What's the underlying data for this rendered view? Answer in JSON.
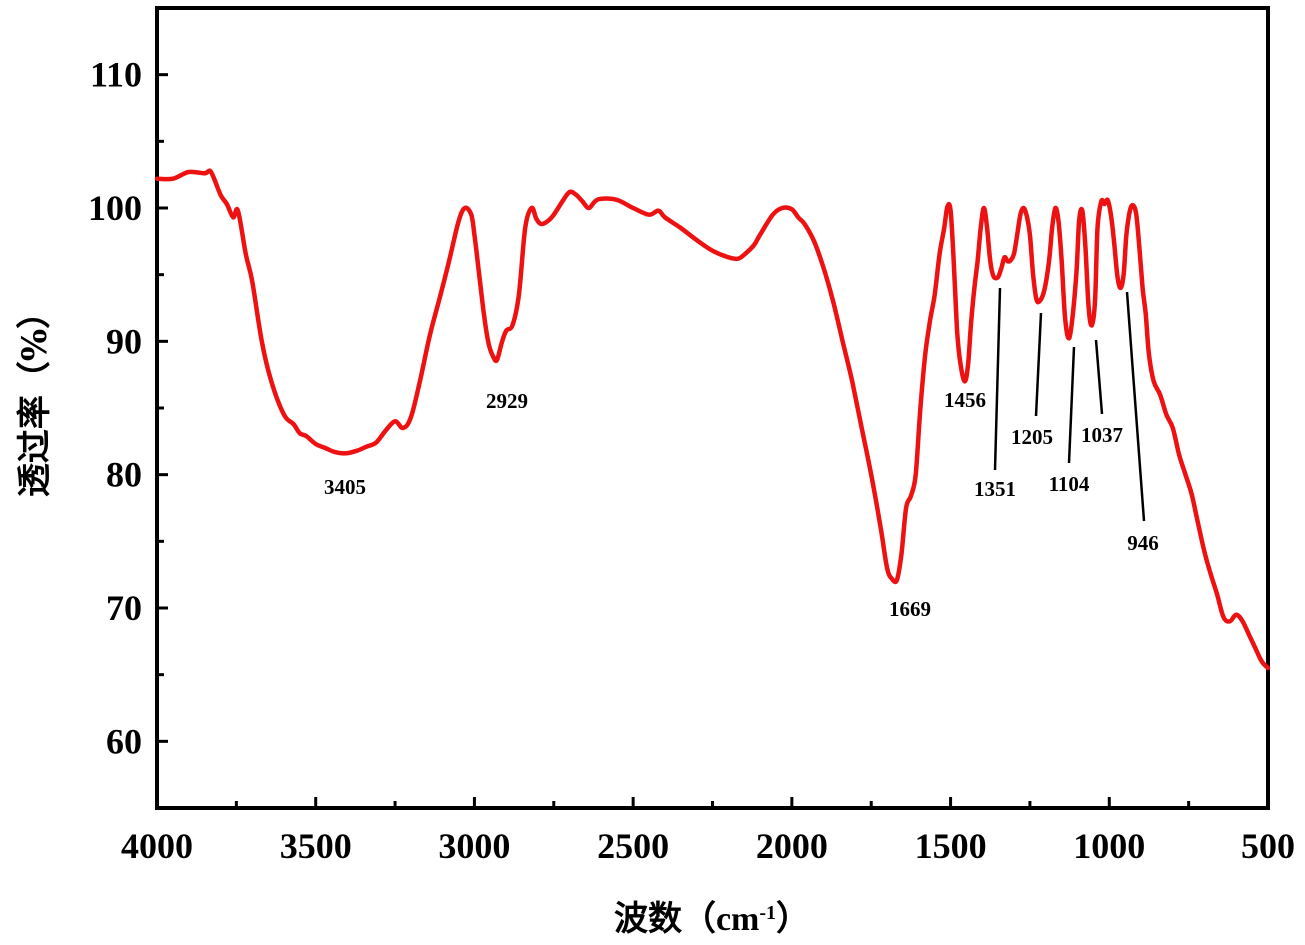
{
  "chart_data": {
    "type": "line",
    "title": "",
    "xlabel": "波数（cm⁻¹）",
    "xlabel_parts": {
      "main": "波数",
      "open": "（",
      "unit": "cm",
      "sup": "-1",
      "close": "）"
    },
    "ylabel": "透过率（%）",
    "xlim": [
      4000,
      500
    ],
    "ylim": [
      55,
      115
    ],
    "x_ticks": [
      4000,
      3500,
      3000,
      2500,
      2000,
      1500,
      1000,
      500
    ],
    "x_tick_labels": [
      "4000",
      "3500",
      "3000",
      "2500",
      "2000",
      "1500",
      "1000",
      "500"
    ],
    "y_ticks": [
      60,
      70,
      80,
      90,
      100,
      110
    ],
    "y_tick_labels": [
      "60",
      "70",
      "80",
      "90",
      "100",
      "110"
    ],
    "grid": false,
    "line_color": "#ee1111",
    "series": [
      {
        "name": "spectrum",
        "x": [
          4000,
          3950,
          3900,
          3850,
          3830,
          3800,
          3780,
          3760,
          3745,
          3720,
          3700,
          3670,
          3640,
          3600,
          3570,
          3550,
          3530,
          3500,
          3470,
          3440,
          3405,
          3370,
          3340,
          3310,
          3280,
          3250,
          3225,
          3200,
          3170,
          3140,
          3110,
          3080,
          3050,
          3030,
          3010,
          3000,
          2985,
          2970,
          2955,
          2940,
          2929,
          2915,
          2900,
          2880,
          2860,
          2840,
          2820,
          2805,
          2790,
          2770,
          2750,
          2720,
          2700,
          2680,
          2660,
          2640,
          2620,
          2600,
          2550,
          2500,
          2450,
          2420,
          2400,
          2350,
          2300,
          2250,
          2200,
          2170,
          2150,
          2120,
          2100,
          2060,
          2030,
          2000,
          1980,
          1960,
          1930,
          1900,
          1870,
          1840,
          1810,
          1780,
          1750,
          1720,
          1700,
          1685,
          1669,
          1655,
          1640,
          1625,
          1610,
          1595,
          1580,
          1565,
          1550,
          1535,
          1520,
          1510,
          1500,
          1490,
          1480,
          1470,
          1456,
          1445,
          1435,
          1425,
          1415,
          1405,
          1395,
          1385,
          1375,
          1365,
          1351,
          1340,
          1330,
          1320,
          1310,
          1300,
          1290,
          1280,
          1270,
          1260,
          1250,
          1240,
          1230,
          1220,
          1205,
          1190,
          1180,
          1170,
          1160,
          1150,
          1140,
          1130,
          1120,
          1104,
          1095,
          1085,
          1075,
          1065,
          1055,
          1045,
          1037,
          1025,
          1015,
          1005,
          995,
          985,
          975,
          965,
          955,
          946,
          935,
          925,
          915,
          905,
          895,
          885,
          875,
          860,
          840,
          820,
          800,
          780,
          760,
          740,
          720,
          700,
          680,
          660,
          640,
          620,
          600,
          580,
          560,
          540,
          520,
          500
        ],
        "y": [
          102.2,
          102.2,
          102.7,
          102.6,
          102.7,
          101.0,
          100.3,
          99.3,
          99.8,
          96.5,
          94.5,
          90.0,
          87.0,
          84.5,
          83.8,
          83.1,
          82.9,
          82.3,
          82.0,
          81.7,
          81.6,
          81.8,
          82.1,
          82.4,
          83.3,
          84.0,
          83.5,
          84.3,
          87.2,
          90.5,
          93.2,
          96.0,
          99.0,
          100.0,
          99.5,
          98.0,
          95.0,
          92.0,
          89.8,
          88.8,
          88.6,
          89.8,
          90.8,
          91.2,
          93.5,
          98.5,
          100.0,
          99.2,
          98.8,
          99.0,
          99.5,
          100.6,
          101.2,
          101.0,
          100.5,
          100.0,
          100.5,
          100.7,
          100.6,
          100.0,
          99.5,
          99.8,
          99.3,
          98.5,
          97.6,
          96.8,
          96.3,
          96.2,
          96.5,
          97.2,
          98.0,
          99.5,
          100.0,
          99.9,
          99.3,
          98.8,
          97.5,
          95.5,
          93.0,
          90.0,
          87.0,
          83.5,
          80.0,
          76.0,
          73.0,
          72.2,
          72.1,
          74.0,
          77.5,
          78.4,
          80.0,
          85.0,
          89.0,
          91.5,
          93.5,
          96.5,
          98.5,
          100.1,
          99.8,
          96.0,
          91.0,
          88.5,
          87.0,
          88.2,
          91.5,
          94.0,
          96.0,
          98.5,
          100.0,
          98.5,
          96.0,
          94.9,
          94.8,
          95.5,
          96.3,
          96.0,
          96.1,
          96.6,
          98.0,
          99.5,
          100.0,
          99.4,
          98.0,
          95.0,
          93.2,
          93.0,
          93.8,
          96.0,
          98.5,
          100.0,
          99.0,
          96.0,
          92.0,
          90.3,
          91.0,
          95.0,
          99.0,
          99.8,
          97.0,
          92.5,
          91.2,
          93.0,
          98.5,
          100.5,
          100.3,
          100.6,
          99.5,
          97.5,
          95.0,
          94.0,
          95.0,
          98.0,
          99.8,
          100.2,
          99.5,
          97.0,
          94.0,
          92.0,
          89.0,
          87.0,
          86.0,
          84.5,
          83.5,
          81.5,
          80.0,
          78.5,
          76.3,
          74.2,
          72.5,
          71.0,
          69.3,
          69.0,
          69.5,
          69.0,
          68.0,
          67.0,
          66.0,
          65.5
        ]
      }
    ],
    "annotations": [
      {
        "text": "3405",
        "x": 3405,
        "y": 81.6
      },
      {
        "text": "2929",
        "x": 2929,
        "y": 88.6
      },
      {
        "text": "1669",
        "x": 1669,
        "y": 72.1
      },
      {
        "text": "1456",
        "x": 1456,
        "y": 87.0
      },
      {
        "text": "1351",
        "x": 1351,
        "y": 94.8
      },
      {
        "text": "1205",
        "x": 1205,
        "y": 93.0
      },
      {
        "text": "1104",
        "x": 1104,
        "y": 90.3
      },
      {
        "text": "1037",
        "x": 1037,
        "y": 91.2
      },
      {
        "text": "946",
        "x": 946,
        "y": 94.0
      }
    ]
  }
}
